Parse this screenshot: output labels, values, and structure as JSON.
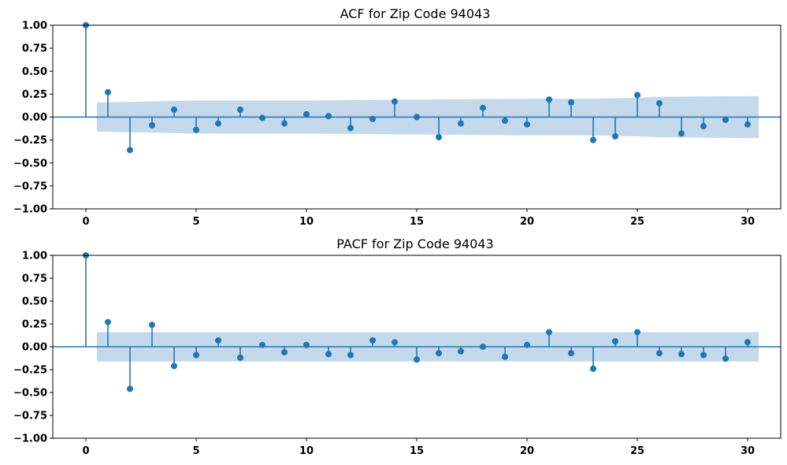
{
  "chart_data": [
    {
      "type": "stem",
      "title": "ACF for Zip Code 94043",
      "xlabel": "",
      "ylabel": "",
      "xlim": [
        -1.5,
        31.5
      ],
      "ylim": [
        -1.0,
        1.0
      ],
      "x_ticks": [
        "0",
        "5",
        "10",
        "15",
        "20",
        "25",
        "30"
      ],
      "y_ticks": [
        "−1.00",
        "−0.75",
        "−0.50",
        "−0.25",
        "0.00",
        "0.25",
        "0.50",
        "0.75",
        "1.00"
      ],
      "x": [
        0,
        1,
        2,
        3,
        4,
        5,
        6,
        7,
        8,
        9,
        10,
        11,
        12,
        13,
        14,
        15,
        16,
        17,
        18,
        19,
        20,
        21,
        22,
        23,
        24,
        25,
        26,
        27,
        28,
        29,
        30
      ],
      "values": [
        1.0,
        0.27,
        -0.36,
        -0.09,
        0.08,
        -0.14,
        -0.07,
        0.08,
        -0.01,
        -0.07,
        0.03,
        0.01,
        -0.12,
        -0.02,
        0.17,
        0.0,
        -0.22,
        -0.07,
        0.1,
        -0.04,
        -0.08,
        0.19,
        0.16,
        -0.25,
        -0.21,
        0.24,
        0.15,
        -0.18,
        -0.1,
        -0.03,
        -0.08
      ],
      "confidence_band": {
        "x": [
          0.5,
          3,
          5,
          10,
          15,
          20,
          23,
          25,
          26,
          30.5
        ],
        "upper": [
          0.16,
          0.17,
          0.18,
          0.18,
          0.19,
          0.2,
          0.2,
          0.21,
          0.22,
          0.23
        ],
        "lower": [
          -0.16,
          -0.17,
          -0.18,
          -0.18,
          -0.19,
          -0.2,
          -0.2,
          -0.21,
          -0.22,
          -0.23
        ]
      },
      "colors": {
        "stem": "#1f77b4",
        "band": "#c5d9ec"
      }
    },
    {
      "type": "stem",
      "title": "PACF for Zip Code 94043",
      "xlabel": "",
      "ylabel": "",
      "xlim": [
        -1.5,
        31.5
      ],
      "ylim": [
        -1.0,
        1.0
      ],
      "x_ticks": [
        "0",
        "5",
        "10",
        "15",
        "20",
        "25",
        "30"
      ],
      "y_ticks": [
        "−1.00",
        "−0.75",
        "−0.50",
        "−0.25",
        "0.00",
        "0.25",
        "0.50",
        "0.75",
        "1.00"
      ],
      "x": [
        0,
        1,
        2,
        3,
        4,
        5,
        6,
        7,
        8,
        9,
        10,
        11,
        12,
        13,
        14,
        15,
        16,
        17,
        18,
        19,
        20,
        21,
        22,
        23,
        24,
        25,
        26,
        27,
        28,
        29,
        30
      ],
      "values": [
        1.0,
        0.27,
        -0.46,
        0.24,
        -0.21,
        -0.09,
        0.07,
        -0.12,
        0.02,
        -0.06,
        0.02,
        -0.08,
        -0.09,
        0.07,
        0.05,
        -0.14,
        -0.07,
        -0.05,
        0.0,
        -0.11,
        0.02,
        0.16,
        -0.07,
        -0.24,
        0.06,
        0.16,
        -0.07,
        -0.08,
        -0.09,
        -0.13,
        0.05
      ],
      "confidence_band": {
        "x": [
          0.5,
          30.5
        ],
        "upper": [
          0.16,
          0.16
        ],
        "lower": [
          -0.16,
          -0.16
        ]
      },
      "colors": {
        "stem": "#1f77b4",
        "band": "#c5d9ec"
      }
    }
  ]
}
